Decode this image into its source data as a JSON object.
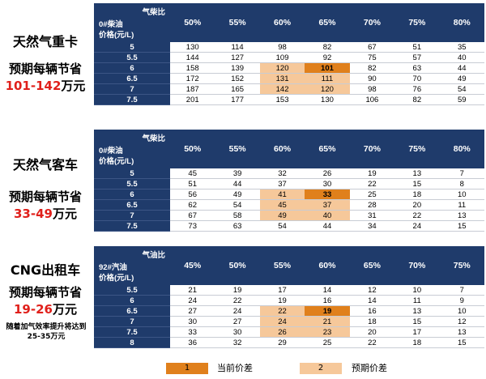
{
  "sections": [
    {
      "id": "heavy-truck",
      "vehicle": "天然气重卡",
      "saving_label": "预期每辆节省",
      "saving_range": "101-142",
      "saving_unit": "万元",
      "note": "",
      "corner_top": "气柴比",
      "corner_mid": "0#柴油",
      "corner_bot": "价格(元/L)",
      "columns": [
        "50%",
        "55%",
        "60%",
        "65%",
        "70%",
        "75%",
        "80%"
      ],
      "rows": [
        {
          "price": "5",
          "values": [
            "130",
            "114",
            "98",
            "82",
            "67",
            "51",
            "35"
          ],
          "marks": [
            "",
            "",
            "",
            "",
            "",
            "",
            ""
          ]
        },
        {
          "price": "5.5",
          "values": [
            "144",
            "127",
            "109",
            "92",
            "75",
            "57",
            "40"
          ],
          "marks": [
            "",
            "",
            "",
            "",
            "",
            "",
            ""
          ]
        },
        {
          "price": "6",
          "values": [
            "158",
            "139",
            "120",
            "101",
            "82",
            "63",
            "44"
          ],
          "marks": [
            "",
            "",
            "exp",
            "cur",
            "",
            "",
            ""
          ]
        },
        {
          "price": "6.5",
          "values": [
            "172",
            "152",
            "131",
            "111",
            "90",
            "70",
            "49"
          ],
          "marks": [
            "",
            "",
            "exp",
            "exp",
            "",
            "",
            ""
          ]
        },
        {
          "price": "7",
          "values": [
            "187",
            "165",
            "142",
            "120",
            "98",
            "76",
            "54"
          ],
          "marks": [
            "",
            "",
            "exp",
            "exp",
            "",
            "",
            ""
          ]
        },
        {
          "price": "7.5",
          "values": [
            "201",
            "177",
            "153",
            "130",
            "106",
            "82",
            "59"
          ],
          "marks": [
            "",
            "",
            "",
            "",
            "",
            "",
            ""
          ]
        }
      ]
    },
    {
      "id": "bus",
      "vehicle": "天然气客车",
      "saving_label": "预期每辆节省",
      "saving_range": "33-49",
      "saving_unit": "万元",
      "note": "",
      "corner_top": "气柴比",
      "corner_mid": "0#柴油",
      "corner_bot": "价格(元/L)",
      "columns": [
        "50%",
        "55%",
        "60%",
        "65%",
        "70%",
        "75%",
        "80%"
      ],
      "rows": [
        {
          "price": "5",
          "values": [
            "45",
            "39",
            "32",
            "26",
            "19",
            "13",
            "7"
          ],
          "marks": [
            "",
            "",
            "",
            "",
            "",
            "",
            ""
          ]
        },
        {
          "price": "5.5",
          "values": [
            "51",
            "44",
            "37",
            "30",
            "22",
            "15",
            "8"
          ],
          "marks": [
            "",
            "",
            "",
            "",
            "",
            "",
            ""
          ]
        },
        {
          "price": "6",
          "values": [
            "56",
            "49",
            "41",
            "33",
            "25",
            "18",
            "10"
          ],
          "marks": [
            "",
            "",
            "exp",
            "cur",
            "",
            "",
            ""
          ]
        },
        {
          "price": "6.5",
          "values": [
            "62",
            "54",
            "45",
            "37",
            "28",
            "20",
            "11"
          ],
          "marks": [
            "",
            "",
            "exp",
            "exp",
            "",
            "",
            ""
          ]
        },
        {
          "price": "7",
          "values": [
            "67",
            "58",
            "49",
            "40",
            "31",
            "22",
            "13"
          ],
          "marks": [
            "",
            "",
            "exp",
            "exp",
            "",
            "",
            ""
          ]
        },
        {
          "price": "7.5",
          "values": [
            "73",
            "63",
            "54",
            "44",
            "34",
            "24",
            "15"
          ],
          "marks": [
            "",
            "",
            "",
            "",
            "",
            "",
            ""
          ]
        }
      ]
    },
    {
      "id": "taxi",
      "vehicle": "CNG出租车",
      "saving_label": "预期每辆节省",
      "saving_range": "19-26",
      "saving_unit": "万元",
      "note": "随着加气效率提升将达到25-35万元",
      "corner_top": "气油比",
      "corner_mid": "92#汽油",
      "corner_bot": "价格(元/L)",
      "columns": [
        "45%",
        "50%",
        "55%",
        "60%",
        "65%",
        "70%",
        "75%"
      ],
      "rows": [
        {
          "price": "5.5",
          "values": [
            "21",
            "19",
            "17",
            "14",
            "12",
            "10",
            "7"
          ],
          "marks": [
            "",
            "",
            "",
            "",
            "",
            "",
            ""
          ]
        },
        {
          "price": "6",
          "values": [
            "24",
            "22",
            "19",
            "16",
            "14",
            "11",
            "9"
          ],
          "marks": [
            "",
            "",
            "",
            "",
            "",
            "",
            ""
          ]
        },
        {
          "price": "6.5",
          "values": [
            "27",
            "24",
            "22",
            "19",
            "16",
            "13",
            "10"
          ],
          "marks": [
            "",
            "",
            "exp",
            "cur",
            "",
            "",
            ""
          ]
        },
        {
          "price": "7",
          "values": [
            "30",
            "27",
            "24",
            "21",
            "18",
            "15",
            "12"
          ],
          "marks": [
            "",
            "",
            "exp",
            "exp",
            "",
            "",
            ""
          ]
        },
        {
          "price": "7.5",
          "values": [
            "33",
            "30",
            "26",
            "23",
            "20",
            "17",
            "13"
          ],
          "marks": [
            "",
            "",
            "exp",
            "exp",
            "",
            "",
            ""
          ]
        },
        {
          "price": "8",
          "values": [
            "36",
            "32",
            "29",
            "25",
            "22",
            "18",
            "15"
          ],
          "marks": [
            "",
            "",
            "",
            "",
            "",
            "",
            ""
          ]
        }
      ]
    }
  ],
  "legend": {
    "current_swatch": "1",
    "current_label": "当前价差",
    "expected_swatch": "2",
    "expected_label": "预期价差"
  },
  "colors": {
    "header_navy": "#1f3b6b",
    "current_orange": "#e0801c",
    "expected_peach": "#f6c89a",
    "saving_red": "#e0201b"
  }
}
